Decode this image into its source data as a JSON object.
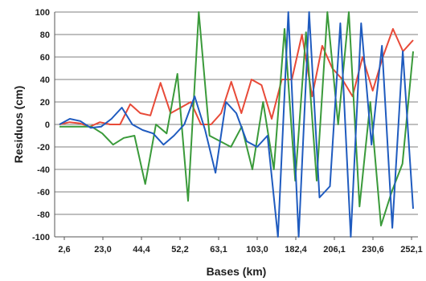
{
  "chart_data": {
    "type": "line",
    "title": "",
    "xlabel": "Bases (km)",
    "ylabel": "Residuos (cm)",
    "ylim": [
      -100,
      100
    ],
    "yticks": [
      -100,
      -80,
      -60,
      -40,
      -20,
      0,
      20,
      40,
      60,
      80,
      100
    ],
    "xtick_labels": [
      "2,6",
      "23,0",
      "44,4",
      "52,2",
      "63,1",
      "103,0",
      "182,4",
      "206,1",
      "230,6",
      "252,1"
    ],
    "grid": "horizontal",
    "series": [
      {
        "color": "#e84a38",
        "values": [
          0,
          2,
          1,
          -2,
          2,
          0,
          0,
          18,
          10,
          8,
          37,
          10,
          15,
          20,
          0,
          0,
          10,
          38,
          10,
          40,
          35,
          5,
          40,
          40,
          80,
          25,
          70,
          50,
          40,
          25,
          60,
          30,
          60,
          85,
          65,
          75
        ]
      },
      {
        "color": "#3a9a3a",
        "values": [
          -2,
          -2,
          -2,
          -2,
          -8,
          -18,
          -12,
          -10,
          -53,
          0,
          -8,
          45,
          -68,
          100,
          -10,
          -15,
          -20,
          -2,
          -40,
          20,
          -40,
          85,
          -50,
          82,
          -50,
          100,
          0,
          100,
          -73,
          20,
          -90,
          -60,
          -35,
          65
        ]
      },
      {
        "color": "#1f5bbf",
        "values": [
          0,
          5,
          3,
          -3,
          -2,
          5,
          15,
          0,
          -5,
          -8,
          -18,
          -10,
          0,
          25,
          -5,
          -43,
          20,
          10,
          -15,
          -20,
          -10,
          -100,
          100,
          -100,
          100,
          -65,
          -55,
          90,
          -100,
          90,
          -18,
          70,
          -92,
          65,
          -75
        ]
      }
    ]
  }
}
